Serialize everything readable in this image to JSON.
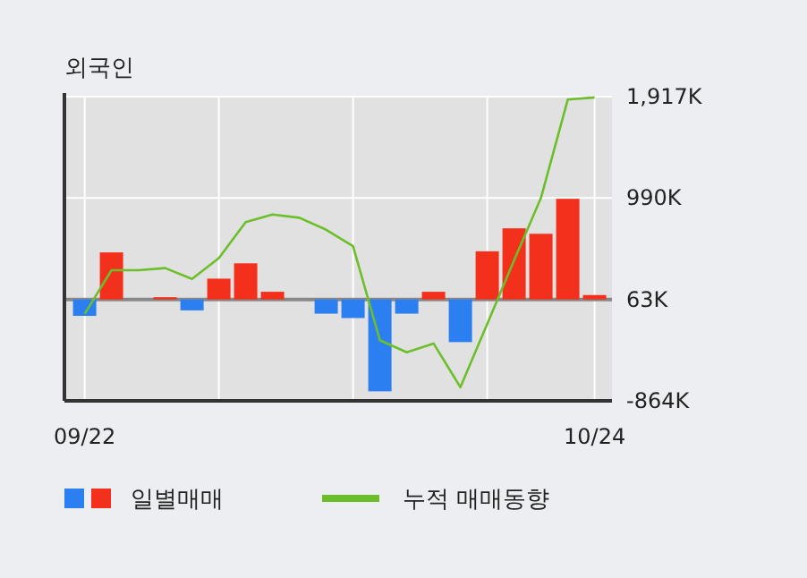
{
  "chart_data": {
    "type": "bar",
    "title": "외국인",
    "categories": [
      "09/22",
      null,
      null,
      null,
      null,
      null,
      null,
      null,
      null,
      null,
      null,
      null,
      null,
      null,
      null,
      null,
      null,
      null,
      null,
      "10/24"
    ],
    "series": [
      {
        "name": "일별매매",
        "base": [
          63,
          63,
          null,
          63,
          63,
          63,
          63,
          63,
          null,
          63,
          63,
          63,
          63,
          63,
          63,
          63,
          63,
          63,
          63,
          63
        ],
        "values": [
          -150,
          430,
          null,
          20,
          -100,
          190,
          330,
          70,
          null,
          -130,
          -170,
          -840,
          -130,
          70,
          -390,
          440,
          650,
          600,
          920,
          40
        ],
        "colors": [
          "#2b7ff0",
          "#f2301c",
          "#f2301c",
          "#f2301c",
          "#2b7ff0",
          "#f2301c",
          "#f2301c",
          "#f2301c",
          "#f2301c",
          "#2b7ff0",
          "#2b7ff0",
          "#2b7ff0",
          "#2b7ff0",
          "#f2301c",
          "#2b7ff0",
          "#f2301c",
          "#f2301c",
          "#f2301c",
          "#f2301c",
          "#f2301c"
        ]
      },
      {
        "name": "누적 매매동향",
        "type": "line",
        "color": "#6cbf2a",
        "values": [
          -70,
          330,
          330,
          350,
          250,
          440,
          770,
          840,
          810,
          700,
          550,
          -310,
          -420,
          -340,
          -740,
          -160,
          420,
          990,
          1890,
          1910
        ]
      }
    ],
    "ylim": [
      -864,
      1917
    ],
    "yticks": [
      {
        "value": 1917,
        "label": "1,917K"
      },
      {
        "value": 990,
        "label": "990K"
      },
      {
        "value": 63,
        "label": "63K"
      },
      {
        "value": -864,
        "label": "-864K"
      }
    ],
    "ref_lines": [
      {
        "axis": "y",
        "value": 63,
        "color": "#888888"
      }
    ],
    "grid": true,
    "legend": "bottom"
  }
}
